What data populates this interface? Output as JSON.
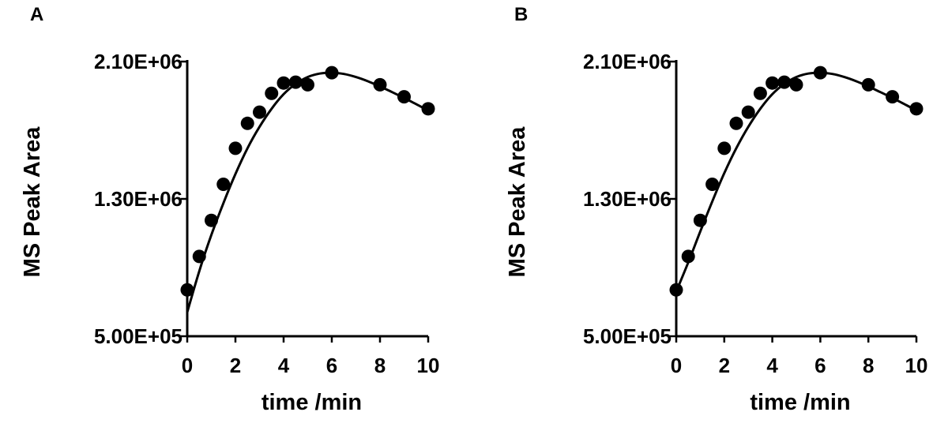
{
  "chart_data": [
    {
      "type": "scatter",
      "panel_label": "A",
      "xlabel": "time /min",
      "ylabel": "MS Peak Area",
      "xlim": [
        0,
        10
      ],
      "ylim": [
        500000,
        2100000
      ],
      "xticks": [
        0,
        2,
        4,
        6,
        8,
        10
      ],
      "xtick_labels": [
        "0",
        "2",
        "4",
        "6",
        "8",
        "10"
      ],
      "yticks": [
        500000,
        1300000,
        2100000
      ],
      "ytick_labels": [
        "5.00E+05",
        "1.30E+06",
        "2.10E+06"
      ],
      "grid": false,
      "series": [
        {
          "x": [
            0,
            0.5,
            1,
            1.5,
            2,
            2.5,
            3,
            3.5,
            4,
            4.5,
            5,
            6,
            8,
            9,
            10
          ],
          "y": [
            770000,
            965000,
            1175000,
            1385000,
            1595000,
            1740000,
            1805000,
            1915000,
            1975000,
            1980000,
            1965000,
            2035000,
            1965000,
            1895000,
            1825000
          ],
          "fit": {
            "x": [
              0,
              0.5,
              1,
              1.5,
              2,
              2.5,
              3,
              3.5,
              4,
              4.5,
              5,
              5.5,
              6,
              6.5,
              7,
              7.5,
              8,
              8.5,
              9,
              9.5,
              10
            ],
            "y": [
              640000,
              880000,
              1090000,
              1275000,
              1445000,
              1595000,
              1720000,
              1825000,
              1910000,
              1970000,
              2010000,
              2030000,
              2035000,
              2028000,
              2010000,
              1985000,
              1955000,
              1922000,
              1888000,
              1852000,
              1815000
            ]
          }
        }
      ]
    },
    {
      "type": "scatter",
      "panel_label": "B",
      "xlabel": "time /min",
      "ylabel": "MS Peak Area",
      "xlim": [
        0,
        10
      ],
      "ylim": [
        500000,
        2100000
      ],
      "xticks": [
        0,
        2,
        4,
        6,
        8,
        10
      ],
      "xtick_labels": [
        "0",
        "2",
        "4",
        "6",
        "8",
        "10"
      ],
      "yticks": [
        500000,
        1300000,
        2100000
      ],
      "ytick_labels": [
        "5.00E+05",
        "1.30E+06",
        "2.10E+06"
      ],
      "grid": false,
      "series": [
        {
          "x": [
            0,
            0.5,
            1,
            1.5,
            2,
            2.5,
            3,
            3.5,
            4,
            4.5,
            5,
            6,
            8,
            9,
            10
          ],
          "y": [
            770000,
            965000,
            1175000,
            1385000,
            1595000,
            1740000,
            1805000,
            1915000,
            1975000,
            1980000,
            1965000,
            2035000,
            1965000,
            1895000,
            1825000
          ],
          "fit": {
            "x": [
              0,
              0.5,
              1,
              1.5,
              2,
              2.5,
              3,
              3.5,
              4,
              4.5,
              5,
              5.5,
              6,
              6.5,
              7,
              7.5,
              8,
              8.5,
              9,
              9.5,
              10
            ],
            "y": [
              760000,
              930000,
              1110000,
              1285000,
              1450000,
              1595000,
              1720000,
              1825000,
              1910000,
              1970000,
              2010000,
              2030000,
              2035000,
              2028000,
              2010000,
              1985000,
              1955000,
              1922000,
              1888000,
              1852000,
              1815000
            ]
          }
        }
      ]
    }
  ]
}
